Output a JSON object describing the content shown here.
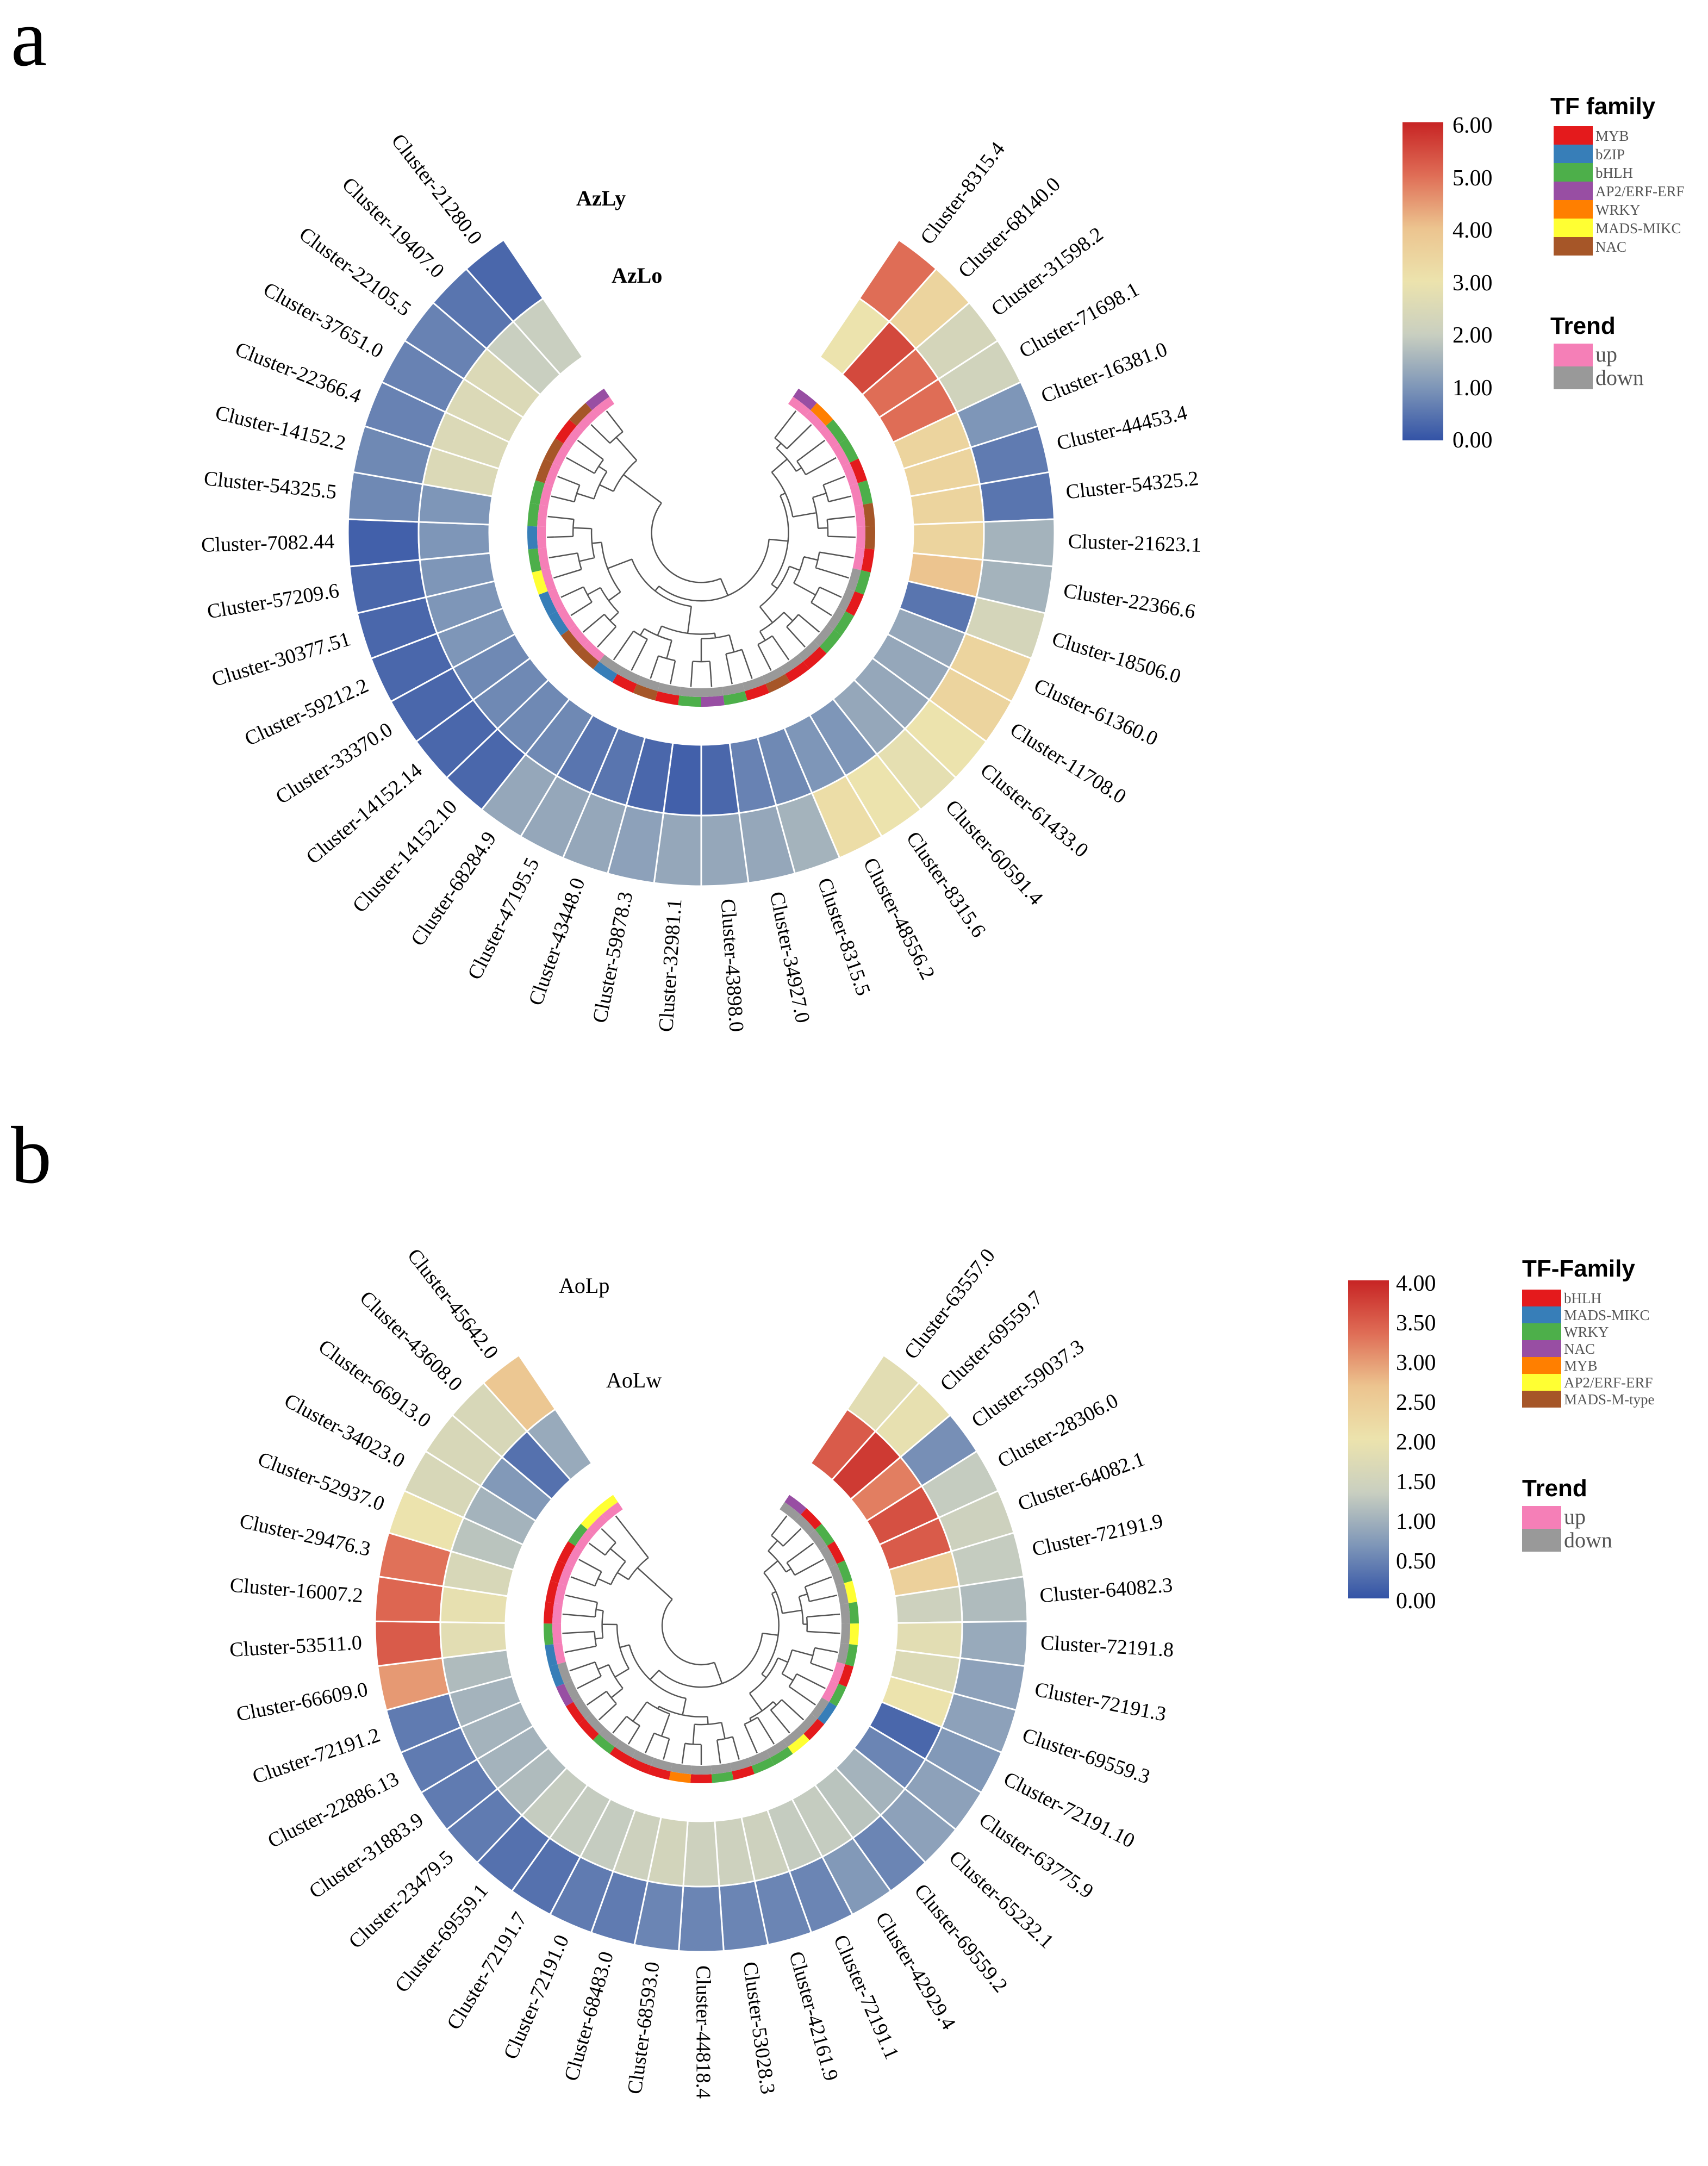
{
  "colors": {
    "scale": [
      "#3353a6",
      "#7e96b8",
      "#c9cfc0",
      "#ece3ad",
      "#ecc48f",
      "#df6d56",
      "#c72424"
    ],
    "trend_up": "#f57fb7",
    "trend_down": "#999999",
    "tree": "#555555"
  },
  "chart_data": [
    {
      "type": "heatmap",
      "panel_label": "a",
      "row_labels": [
        "AzLy",
        "AzLo"
      ],
      "value_range": [
        0,
        6
      ],
      "colorbar_ticks": [
        "6.00",
        "5.00",
        "4.00",
        "3.00",
        "2.00",
        "1.00",
        "0.00"
      ],
      "family_legend_title": "TF family",
      "families": [
        {
          "name": "MYB",
          "color": "#e41a1c"
        },
        {
          "name": "bZIP",
          "color": "#377eb8"
        },
        {
          "name": "bHLH",
          "color": "#4daf4a"
        },
        {
          "name": "AP2/ERF-ERF",
          "color": "#984ea3"
        },
        {
          "name": "WRKY",
          "color": "#ff7f00"
        },
        {
          "name": "MADS-MIKC",
          "color": "#ffff33"
        },
        {
          "name": "NAC",
          "color": "#a65628"
        }
      ],
      "trend_legend_title": "Trend",
      "trend_items": [
        "up",
        "down"
      ],
      "clusters": [
        "Cluster-8315.4",
        "Cluster-68140.0",
        "Cluster-31598.2",
        "Cluster-71698.1",
        "Cluster-16381.0",
        "Cluster-44453.4",
        "Cluster-54325.2",
        "Cluster-21623.1",
        "Cluster-22366.6",
        "Cluster-18506.0",
        "Cluster-61360.0",
        "Cluster-11708.0",
        "Cluster-61433.0",
        "Cluster-60591.4",
        "Cluster-8315.6",
        "Cluster-48556.2",
        "Cluster-8315.5",
        "Cluster-34927.0",
        "Cluster-43898.0",
        "Cluster-32981.1",
        "Cluster-59878.3",
        "Cluster-43448.0",
        "Cluster-47195.5",
        "Cluster-68284.9",
        "Cluster-14152.10",
        "Cluster-14152.14",
        "Cluster-33370.0",
        "Cluster-59212.2",
        "Cluster-30377.51",
        "Cluster-57209.6",
        "Cluster-7082.44",
        "Cluster-54325.5",
        "Cluster-14152.2",
        "Cluster-22366.4",
        "Cluster-37651.0",
        "Cluster-22105.5",
        "Cluster-19407.0",
        "Cluster-21280.0"
      ],
      "values_row1": [
        5.0,
        3.5,
        2.3,
        2.2,
        1.0,
        0.6,
        0.5,
        1.5,
        1.5,
        2.3,
        3.5,
        3.5,
        3.0,
        2.8,
        3.0,
        3.2,
        1.5,
        1.3,
        1.3,
        1.3,
        1.2,
        1.3,
        1.3,
        1.3,
        0.3,
        0.3,
        0.3,
        0.3,
        0.3,
        0.3,
        0.2,
        0.8,
        0.8,
        0.7,
        0.7,
        0.7,
        0.5,
        0.3
      ],
      "values_row2": [
        3.0,
        5.5,
        5.0,
        5.0,
        3.5,
        3.5,
        3.5,
        3.5,
        4.0,
        0.5,
        1.3,
        1.3,
        1.3,
        1.3,
        1.0,
        1.0,
        0.8,
        0.7,
        0.3,
        0.2,
        0.3,
        0.5,
        0.5,
        0.8,
        0.8,
        0.8,
        0.8,
        1.0,
        1.0,
        1.0,
        1.0,
        1.0,
        2.5,
        2.5,
        2.5,
        2.5,
        2.0,
        2.0
      ],
      "family_ring": [
        3,
        4,
        2,
        2,
        0,
        2,
        6,
        6,
        0,
        2,
        0,
        2,
        2,
        0,
        0,
        6,
        0,
        2,
        3,
        2,
        0,
        6,
        0,
        1,
        6,
        6,
        1,
        1,
        5,
        2,
        1,
        2,
        2,
        6,
        6,
        0,
        6,
        3
      ],
      "trend_ring": [
        0,
        0,
        0,
        0,
        0,
        0,
        0,
        0,
        0,
        1,
        1,
        1,
        1,
        1,
        1,
        1,
        1,
        1,
        1,
        1,
        1,
        1,
        1,
        1,
        0,
        0,
        0,
        0,
        0,
        0,
        0,
        0,
        0,
        0,
        0,
        0,
        0,
        0
      ]
    },
    {
      "type": "heatmap",
      "panel_label": "b",
      "row_labels": [
        "AoLp",
        "AoLw"
      ],
      "value_range": [
        0,
        4
      ],
      "colorbar_ticks": [
        "4.00",
        "3.50",
        "3.00",
        "2.50",
        "2.00",
        "1.50",
        "1.00",
        "0.50",
        "0.00"
      ],
      "family_legend_title": "TF-Family",
      "families": [
        {
          "name": "bHLH",
          "color": "#e41a1c"
        },
        {
          "name": "MADS-MIKC",
          "color": "#377eb8"
        },
        {
          "name": "WRKY",
          "color": "#4daf4a"
        },
        {
          "name": "NAC",
          "color": "#984ea3"
        },
        {
          "name": "MYB",
          "color": "#ff7f00"
        },
        {
          "name": "AP2/ERF-ERF",
          "color": "#ffff33"
        },
        {
          "name": "MADS-M-type",
          "color": "#a65628"
        }
      ],
      "trend_legend_title": "Trend",
      "trend_items": [
        "up",
        "down"
      ],
      "clusters": [
        "Cluster-63557.0",
        "Cluster-69559.7",
        "Cluster-59037.3",
        "Cluster-28306.0",
        "Cluster-64082.1",
        "Cluster-72191.9",
        "Cluster-64082.3",
        "Cluster-72191.8",
        "Cluster-72191.3",
        "Cluster-69559.3",
        "Cluster-72191.10",
        "Cluster-63775.9",
        "Cluster-65232.1",
        "Cluster-69559.2",
        "Cluster-42929.4",
        "Cluster-72191.1",
        "Cluster-42161.9",
        "Cluster-53028.3",
        "Cluster-44818.4",
        "Cluster-68593.0",
        "Cluster-68483.0",
        "Cluster-72191.0",
        "Cluster-72191.7",
        "Cluster-69559.1",
        "Cluster-23479.5",
        "Cluster-31883.9",
        "Cluster-22886.13",
        "Cluster-72191.2",
        "Cluster-66609.0",
        "Cluster-53511.0",
        "Cluster-16007.2",
        "Cluster-29476.3",
        "Cluster-52937.0",
        "Cluster-34023.0",
        "Cluster-66913.0",
        "Cluster-43608.0",
        "Cluster-45642.0"
      ],
      "values_row1": [
        1.8,
        1.9,
        0.6,
        1.3,
        1.4,
        1.3,
        1.1,
        0.9,
        0.8,
        0.8,
        0.7,
        0.8,
        0.8,
        0.5,
        0.7,
        0.5,
        0.5,
        0.5,
        0.5,
        0.5,
        0.4,
        0.4,
        0.3,
        0.3,
        0.4,
        0.4,
        0.4,
        0.4,
        3.0,
        3.5,
        3.4,
        3.3,
        2.0,
        1.6,
        1.6,
        1.6,
        2.6
      ],
      "values_row2": [
        3.5,
        3.8,
        3.2,
        3.6,
        3.5,
        2.4,
        1.4,
        1.8,
        1.7,
        2.0,
        0.2,
        0.5,
        1.0,
        1.2,
        1.3,
        1.3,
        1.4,
        1.4,
        1.4,
        1.5,
        1.4,
        1.3,
        1.3,
        1.3,
        1.1,
        1.0,
        1.0,
        1.0,
        1.1,
        1.8,
        1.9,
        1.6,
        1.2,
        1.0,
        0.7,
        0.3,
        0.9
      ],
      "family_ring": [
        3,
        0,
        2,
        0,
        2,
        5,
        2,
        5,
        2,
        0,
        2,
        1,
        0,
        5,
        2,
        2,
        0,
        2,
        0,
        4,
        0,
        0,
        0,
        2,
        0,
        0,
        3,
        1,
        1,
        2,
        0,
        0,
        0,
        0,
        2,
        5,
        5
      ],
      "trend_ring": [
        1,
        1,
        1,
        1,
        1,
        1,
        1,
        1,
        1,
        0,
        0,
        1,
        1,
        1,
        1,
        1,
        1,
        1,
        1,
        1,
        1,
        1,
        1,
        1,
        1,
        1,
        1,
        1,
        0,
        0,
        0,
        0,
        0,
        0,
        0,
        0,
        0
      ]
    }
  ]
}
